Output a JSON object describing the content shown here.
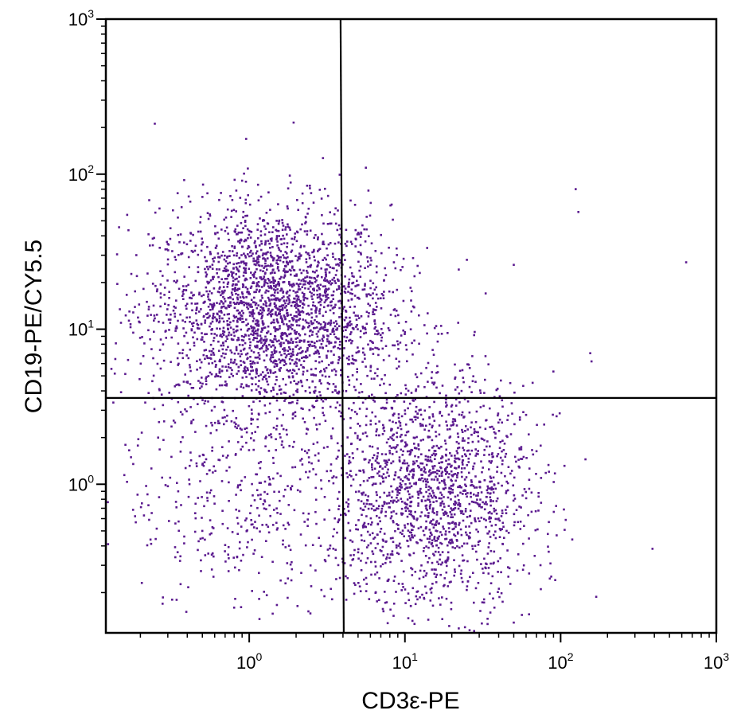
{
  "chart_data": {
    "type": "scatter",
    "title": "",
    "xlabel": "CD3ε-PE",
    "ylabel": "CD19-PE/CY5.5",
    "x_scale": "log",
    "y_scale": "log",
    "xlim": [
      0.12,
      1000
    ],
    "ylim": [
      0.11,
      1000
    ],
    "x_ticks": [
      {
        "base": "10",
        "exp": "0",
        "value": 1
      },
      {
        "base": "10",
        "exp": "1",
        "value": 10
      },
      {
        "base": "10",
        "exp": "2",
        "value": 100
      },
      {
        "base": "10",
        "exp": "3",
        "value": 1000
      }
    ],
    "y_ticks": [
      {
        "base": "10",
        "exp": "0",
        "value": 1
      },
      {
        "base": "10",
        "exp": "1",
        "value": 10
      },
      {
        "base": "10",
        "exp": "2",
        "value": 100
      },
      {
        "base": "10",
        "exp": "3",
        "value": 1000
      }
    ],
    "grid": false,
    "marker_color": "#5b1a8f",
    "gates": {
      "x_threshold": 4.0,
      "y_threshold": 3.6
    },
    "populations": [
      {
        "center": [
          1.4,
          13
        ],
        "spread": [
          0.38,
          0.34
        ],
        "count": 2600
      },
      {
        "center": [
          15,
          0.85
        ],
        "spread": [
          0.33,
          0.38
        ],
        "count": 1700
      },
      {
        "center": [
          1.0,
          0.85
        ],
        "spread": [
          0.42,
          0.38
        ],
        "count": 420
      }
    ],
    "sparse_points": [
      [
        125,
        80
      ],
      [
        130,
        57
      ],
      [
        640,
        27
      ],
      [
        25,
        28
      ],
      [
        50,
        26
      ],
      [
        33,
        17
      ],
      [
        22,
        11
      ],
      [
        155,
        7
      ],
      [
        158,
        6.2
      ],
      [
        8.5,
        27
      ],
      [
        5.2,
        31
      ],
      [
        6.4,
        18
      ],
      [
        7.2,
        7.5
      ],
      [
        11,
        13
      ],
      [
        4.6,
        22
      ],
      [
        6,
        26
      ],
      [
        0.15,
        11
      ],
      [
        0.17,
        13
      ],
      [
        0.19,
        22
      ],
      [
        0.22,
        15
      ],
      [
        0.25,
        19
      ],
      [
        0.28,
        11
      ],
      [
        0.18,
        9.5
      ],
      [
        0.26,
        2.0
      ],
      [
        0.18,
        1.35
      ],
      [
        0.35,
        0.9
      ],
      [
        0.42,
        1.6
      ],
      [
        0.5,
        0.5
      ],
      [
        0.45,
        0.65
      ],
      [
        0.32,
        0.18
      ],
      [
        0.8,
        0.16
      ],
      [
        2.5,
        0.22
      ],
      [
        0.95,
        65
      ],
      [
        2.2,
        75
      ],
      [
        1.5,
        50
      ],
      [
        3.0,
        48
      ],
      [
        60,
        2.8
      ],
      [
        48,
        2.1
      ],
      [
        45,
        0.5
      ],
      [
        40,
        0.6
      ],
      [
        32,
        3.2
      ],
      [
        26,
        2.9
      ],
      [
        42,
        2.5
      ]
    ]
  }
}
